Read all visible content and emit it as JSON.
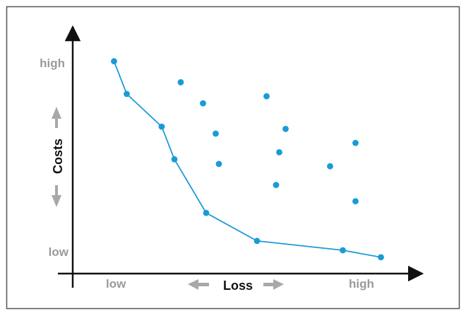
{
  "chart_data": {
    "type": "scatter",
    "x_axis": {
      "label": "Loss",
      "low_label": "low",
      "high_label": "high"
    },
    "y_axis": {
      "label": "Costs",
      "low_label": "low",
      "high_label": "high"
    },
    "frontier_points": [
      {
        "x": 0.13,
        "y": 0.91
      },
      {
        "x": 0.17,
        "y": 0.77
      },
      {
        "x": 0.28,
        "y": 0.63
      },
      {
        "x": 0.32,
        "y": 0.49
      },
      {
        "x": 0.42,
        "y": 0.26
      },
      {
        "x": 0.58,
        "y": 0.14
      },
      {
        "x": 0.85,
        "y": 0.1
      },
      {
        "x": 0.97,
        "y": 0.07
      }
    ],
    "other_points": [
      {
        "x": 0.34,
        "y": 0.82
      },
      {
        "x": 0.41,
        "y": 0.73
      },
      {
        "x": 0.45,
        "y": 0.6
      },
      {
        "x": 0.46,
        "y": 0.47
      },
      {
        "x": 0.61,
        "y": 0.76
      },
      {
        "x": 0.67,
        "y": 0.62
      },
      {
        "x": 0.65,
        "y": 0.52
      },
      {
        "x": 0.64,
        "y": 0.38
      },
      {
        "x": 0.89,
        "y": 0.56
      },
      {
        "x": 0.81,
        "y": 0.46
      },
      {
        "x": 0.89,
        "y": 0.31
      }
    ],
    "colors": {
      "series": "#1a9bd7",
      "axis": "#111111",
      "muted_label": "#9a9a9a",
      "frame": "#555555"
    }
  }
}
